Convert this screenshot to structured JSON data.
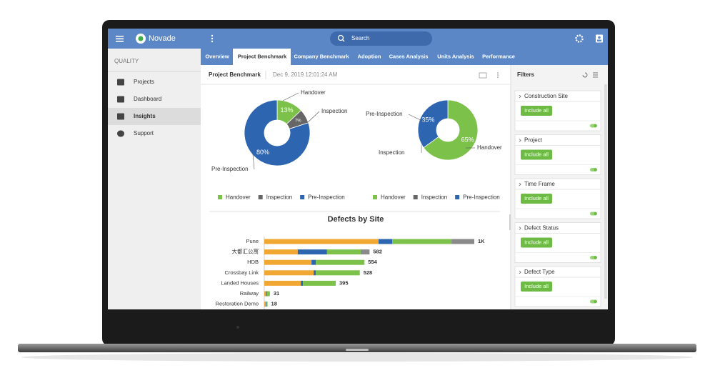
{
  "app": {
    "brand": "Novade",
    "search": "Search",
    "section": "QUALITY",
    "nav": [
      "Projects",
      "Dashboard",
      "Insights",
      "Support"
    ],
    "tabs": [
      "Overview",
      "Project Benchmark",
      "Company Benchmark",
      "Adoption",
      "Cases Analysis",
      "Units Analysis",
      "Performance"
    ]
  },
  "panel": {
    "title": "Project Benchmark",
    "timestamp": "Dec 9, 2019 12:01:24 AM"
  },
  "filters": {
    "title": "Filters",
    "items": [
      {
        "label": "Construction Site",
        "button": "Include all"
      },
      {
        "label": "Project",
        "button": "Include all"
      },
      {
        "label": "Time Frame",
        "button": "Include all"
      },
      {
        "label": "Defect Status",
        "button": "Include all"
      },
      {
        "label": "Defect Type",
        "button": "Include all"
      }
    ]
  },
  "chart_data": [
    {
      "type": "pie",
      "categories": [
        "Handover",
        "Inspection",
        "Pre-Inspection"
      ],
      "values": [
        13,
        7,
        80
      ],
      "value_labels": [
        "13%",
        "7%",
        "80%"
      ],
      "colors": [
        "#7cc24a",
        "#666666",
        "#2e65b1"
      ]
    },
    {
      "type": "pie",
      "categories": [
        "Handover",
        "Inspection",
        "Pre-Inspection"
      ],
      "values": [
        65,
        0,
        35
      ],
      "value_labels": [
        "65%",
        null,
        "35%"
      ],
      "colors": [
        "#7cc24a",
        "#666666",
        "#2e65b1"
      ]
    },
    {
      "type": "bar",
      "orientation": "horizontal",
      "stacked": true,
      "title": "Defects by Site",
      "categories": [
        "Pune",
        "大都汇公寓",
        "HDB",
        "Crossbay Link",
        "Landed Houses",
        "Railway",
        "Restoration Demo"
      ],
      "series": [
        {
          "color": "#f0a833",
          "values": [
            632,
            185,
            261,
            273,
            202,
            10,
            8
          ]
        },
        {
          "color": "#2e65b1",
          "values": [
            75,
            162,
            24,
            12,
            12,
            5,
            3
          ]
        },
        {
          "color": "#7cc24a",
          "values": [
            328,
            186,
            269,
            243,
            181,
            16,
            7
          ]
        },
        {
          "color": "#8a8a8a",
          "values": [
            126,
            49,
            0,
            0,
            0,
            0,
            0
          ]
        }
      ],
      "totals": {
        "values": [
          1161,
          582,
          554,
          528,
          395,
          31,
          18
        ],
        "value_labels": [
          "1K",
          "582",
          "554",
          "528",
          "395",
          "31",
          "18"
        ]
      }
    }
  ]
}
